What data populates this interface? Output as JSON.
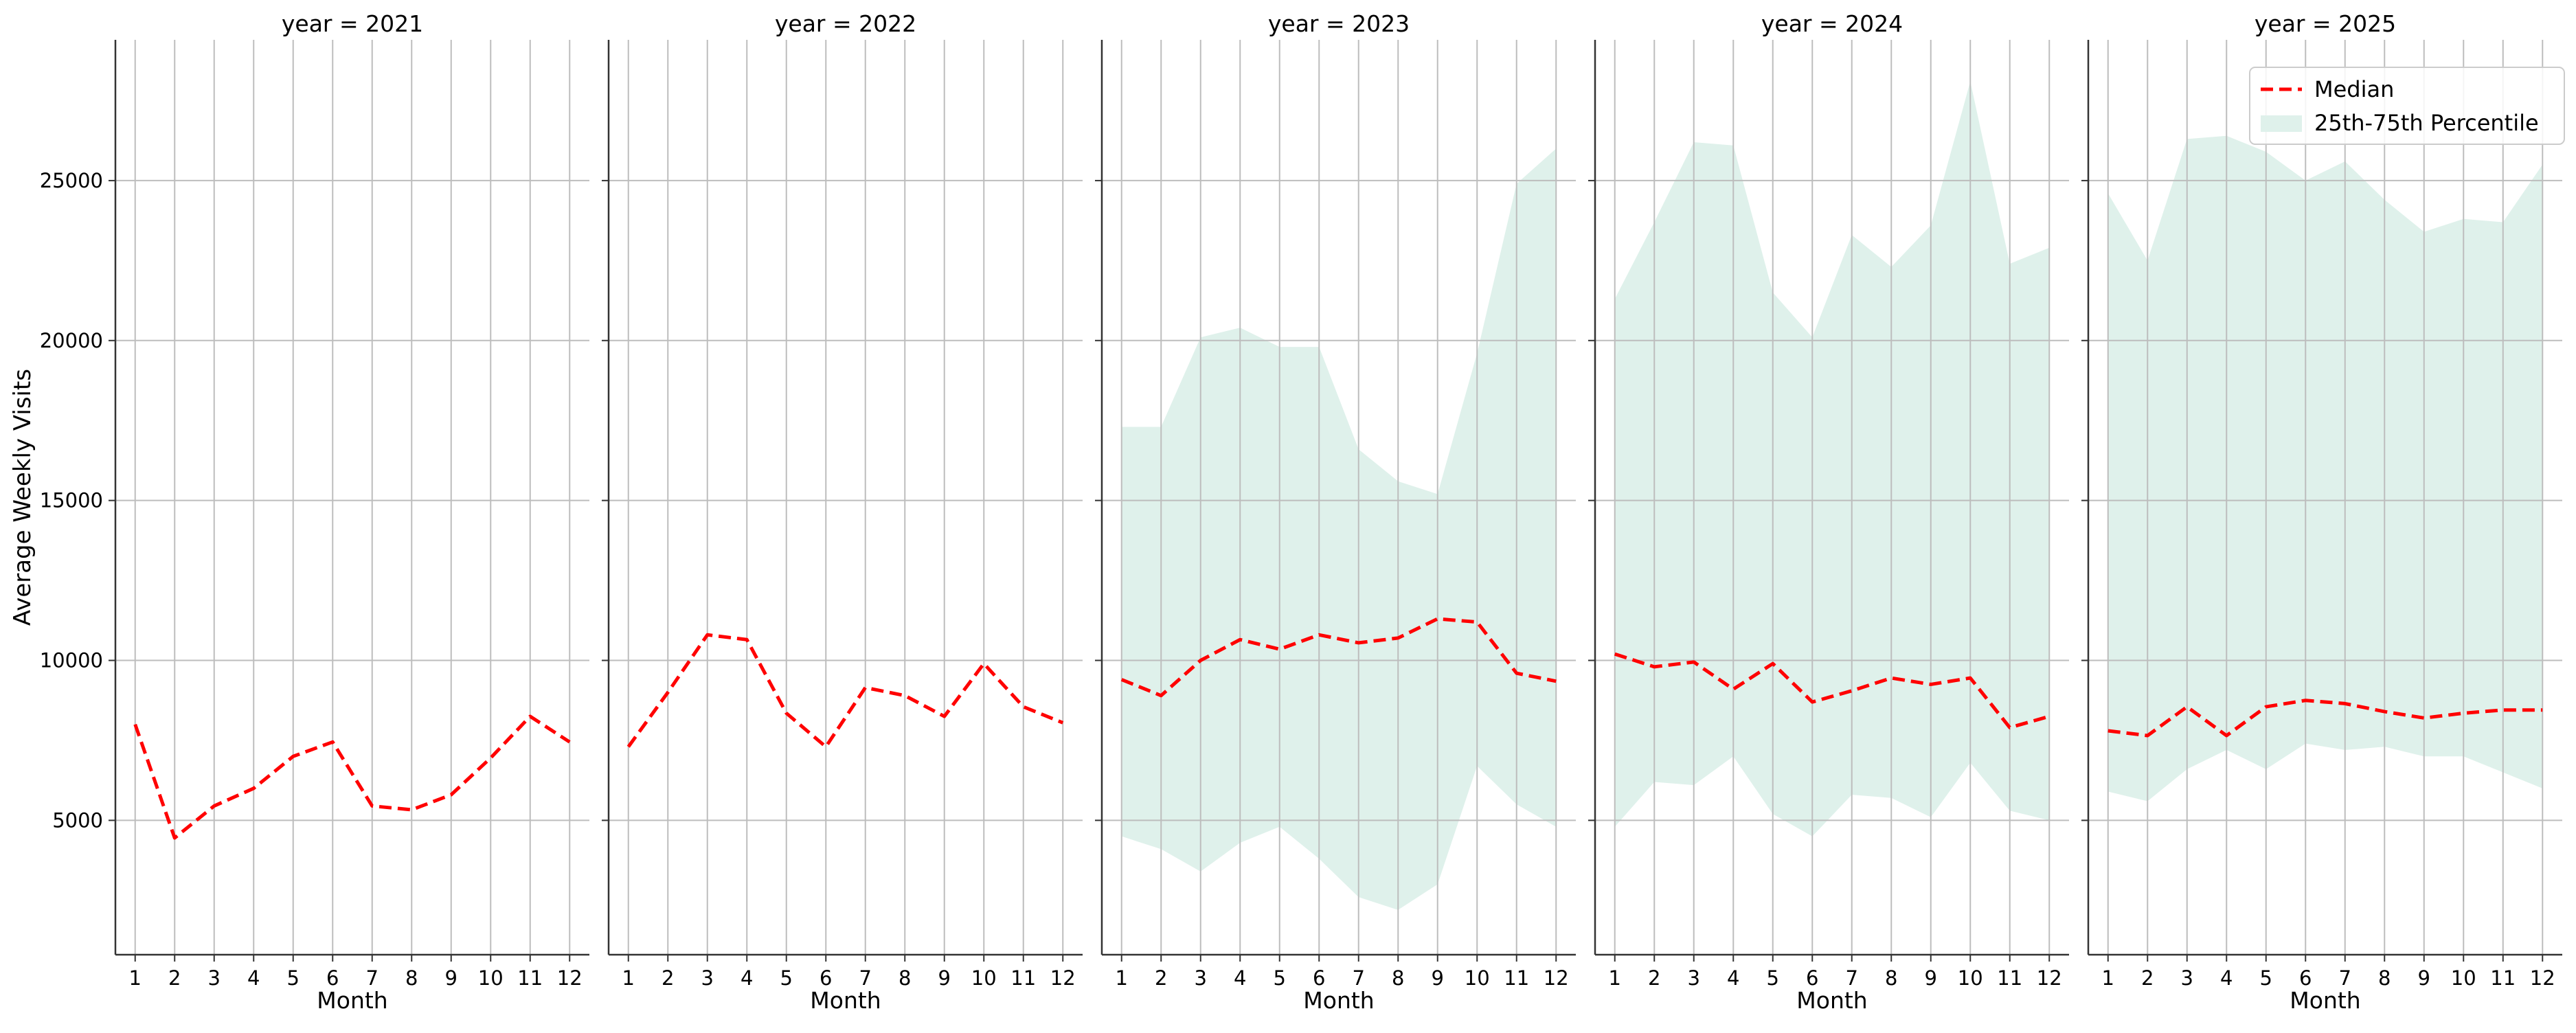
{
  "chart_data": {
    "type": "line",
    "ylabel": "Average Weekly Visits",
    "ylim": [
      800,
      29400
    ],
    "xlim": [
      0.5,
      12.5
    ],
    "grid": true,
    "legend_placement": "top-right",
    "yticks": [
      5000,
      10000,
      15000,
      20000,
      25000
    ],
    "series_styles": {
      "median_color": "#ff0000",
      "band_color": "#dff1eb"
    },
    "legend": {
      "median_label": "Median",
      "band_label": "25th-75th Percentile"
    },
    "facets": [
      {
        "title": "year = 2021",
        "xlabel": "Month",
        "x": [
          1,
          2,
          3,
          4,
          5,
          6,
          7,
          8,
          9,
          10,
          11,
          12
        ],
        "median": [
          8000,
          4450,
          5450,
          6000,
          7000,
          7450,
          5450,
          5330,
          5800,
          6950,
          8250,
          7450
        ],
        "p25": null,
        "p75": null
      },
      {
        "title": "year = 2022",
        "xlabel": "Month",
        "x": [
          1,
          2,
          3,
          4,
          5,
          6,
          7,
          8,
          9,
          10,
          11,
          12
        ],
        "median": [
          7300,
          9000,
          10800,
          10650,
          8350,
          7300,
          9150,
          8900,
          8250,
          9900,
          8550,
          8050
        ],
        "p25": null,
        "p75": null
      },
      {
        "title": "year = 2023",
        "xlabel": "Month",
        "x": [
          1,
          2,
          3,
          4,
          5,
          6,
          7,
          8,
          9,
          10,
          11,
          12
        ],
        "median": [
          9400,
          8900,
          10000,
          10650,
          10350,
          10800,
          10550,
          10700,
          11300,
          11200,
          9600,
          9350
        ],
        "p25": [
          4500,
          4100,
          3400,
          4300,
          4800,
          3800,
          2600,
          2200,
          3000,
          6700,
          5500,
          4800
        ],
        "p75": [
          17300,
          17300,
          20100,
          20400,
          19800,
          19800,
          16600,
          15600,
          15200,
          19600,
          24900,
          26000
        ]
      },
      {
        "title": "year = 2024",
        "xlabel": "Month",
        "x": [
          1,
          2,
          3,
          4,
          5,
          6,
          7,
          8,
          9,
          10,
          11,
          12
        ],
        "median": [
          10200,
          9800,
          9950,
          9100,
          9900,
          8700,
          9050,
          9450,
          9250,
          9450,
          7900,
          8250
        ],
        "p25": [
          4800,
          6200,
          6100,
          7000,
          5200,
          4500,
          5800,
          5700,
          5100,
          6800,
          5300,
          5000
        ],
        "p75": [
          21300,
          23700,
          26200,
          26100,
          21500,
          20100,
          23300,
          22300,
          23600,
          28100,
          22400,
          22900
        ]
      },
      {
        "title": "year = 2025",
        "xlabel": "Month",
        "x": [
          1,
          2,
          3,
          4,
          5,
          6,
          7,
          8,
          9,
          10,
          11,
          12
        ],
        "median": [
          7800,
          7650,
          8550,
          7650,
          8550,
          8750,
          8650,
          8400,
          8200,
          8350,
          8450,
          8450
        ],
        "p25": [
          5900,
          5600,
          6600,
          7200,
          6600,
          7400,
          7200,
          7300,
          7000,
          7000,
          6500,
          6000
        ],
        "p75": [
          24600,
          22500,
          26300,
          26400,
          25900,
          25000,
          25600,
          24400,
          23400,
          23800,
          23700,
          25500
        ]
      }
    ]
  }
}
